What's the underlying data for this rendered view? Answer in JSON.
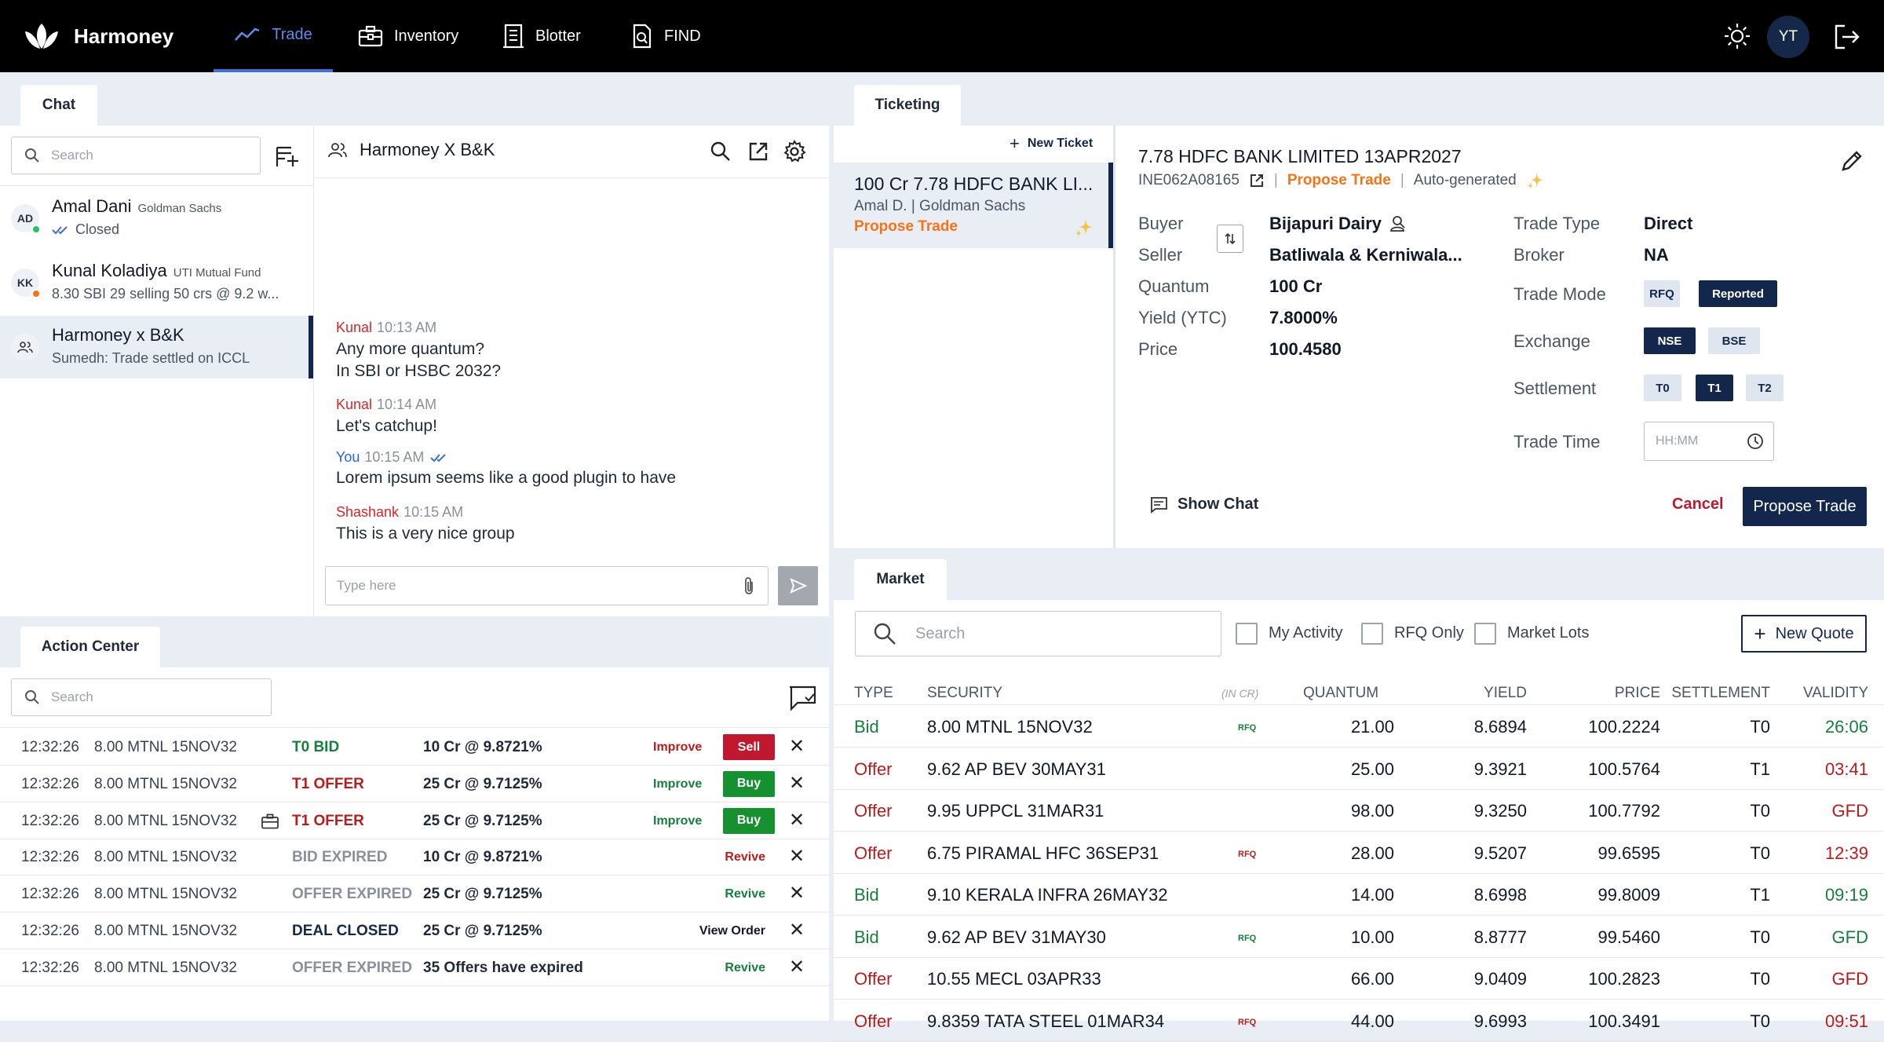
{
  "nav": {
    "brand": "Harmoney",
    "items": [
      {
        "label": "Trade",
        "icon": "trend-line-icon",
        "active": true
      },
      {
        "label": "Inventory",
        "icon": "briefcase-icon"
      },
      {
        "label": "Blotter",
        "icon": "ledger-icon"
      },
      {
        "label": "FIND",
        "icon": "find-document-icon"
      }
    ],
    "user_initials": "YT"
  },
  "chat": {
    "tab": "Chat",
    "search_placeholder": "Search",
    "list": [
      {
        "initials": "AD",
        "name": "Amal Dani",
        "org": "Goldman Sachs",
        "sub": "Closed",
        "status_color": "#22c55e"
      },
      {
        "initials": "KK",
        "name": "Kunal Koladiya",
        "org": "UTI Mutual Fund",
        "sub": "8.30 SBI 29 selling 50 crs @ 9.2 w...",
        "status_color": "#f97316"
      },
      {
        "name": "Harmoney x B&K",
        "sub": "Sumedh: Trade settled on ICCL"
      }
    ],
    "conversation_title": "Harmoney X B&K",
    "messages": [
      {
        "sender": "Kunal",
        "time": "10:13 AM",
        "lines": [
          "Any more quantum?",
          "In SBI or HSBC 2032?"
        ]
      },
      {
        "sender": "Kunal",
        "time": "10:14 AM",
        "lines": [
          "Let's catchup!"
        ]
      },
      {
        "sender": "You",
        "time": "10:15 AM",
        "lines": [
          "Lorem ipsum seems like a good plugin to have"
        ]
      },
      {
        "sender": "Shashank",
        "time": "10:15 AM",
        "lines": [
          "This is a very nice group"
        ]
      }
    ],
    "input_placeholder": "Type here"
  },
  "action_center": {
    "tab": "Action Center",
    "search_placeholder": "Search",
    "rows": [
      {
        "time": "12:32:26",
        "security": "8.00 MTNL 15NOV32",
        "status": "T0 BID",
        "status_color": "#15803d",
        "detail": "10 Cr @ 9.8721%",
        "action": "Improve",
        "action_color": "#b91c1c",
        "button": "Sell",
        "button_color": "#c0192f"
      },
      {
        "time": "12:32:26",
        "security": "8.00 MTNL 15NOV32",
        "status": "T1 OFFER",
        "status_color": "#b91c1c",
        "detail": "25 Cr @ 9.7125%",
        "action": "Improve",
        "action_color": "#15803d",
        "button": "Buy",
        "button_color": "#15912f"
      },
      {
        "time": "12:32:26",
        "security": "8.00 MTNL 15NOV32",
        "status": "T1 OFFER",
        "status_color": "#b91c1c",
        "detail": "25 Cr @ 9.7125%",
        "action": "Improve",
        "action_color": "#15803d",
        "button": "Buy",
        "button_color": "#15912f",
        "icon": true
      },
      {
        "time": "12:32:26",
        "security": "8.00 MTNL 15NOV32",
        "status": "BID EXPIRED",
        "status_color": "#8a9099",
        "detail": "10 Cr @ 9.8721%",
        "action": "Revive",
        "action_color": "#b91c1c"
      },
      {
        "time": "12:32:26",
        "security": "8.00 MTNL 15NOV32",
        "status": "OFFER EXPIRED",
        "status_color": "#8a9099",
        "detail": "25 Cr @ 9.7125%",
        "action": "Revive",
        "action_color": "#15803d"
      },
      {
        "time": "12:32:26",
        "security": "8.00 MTNL 15NOV32",
        "status": "DEAL CLOSED",
        "status_color": "#13264b",
        "detail": "25 Cr @ 9.7125%",
        "action": "View Order",
        "action_color": "#111827"
      },
      {
        "time": "12:32:26",
        "security": "8.00 MTNL 15NOV32",
        "status": "OFFER EXPIRED",
        "status_color": "#8a9099",
        "detail": "35 Offers have expired",
        "action": "Revive",
        "action_color": "#15803d"
      }
    ]
  },
  "ticketing": {
    "tab": "Ticketing",
    "new_ticket": "New Ticket",
    "list": [
      {
        "title": "100 Cr 7.78 HDFC BANK LI...",
        "sub": "Amal D. | Goldman Sachs",
        "status": "Propose Trade"
      }
    ],
    "detail": {
      "title": "7.78 HDFC BANK LIMITED 13APR2027",
      "isin": "INE062A08165",
      "status": "Propose Trade",
      "source": "Auto-generated",
      "fields": [
        {
          "label": "Buyer",
          "value": "Bijapuri Dairy"
        },
        {
          "label": "Seller",
          "value": "Batliwala & Kerniwala..."
        },
        {
          "label": "Quantum",
          "value": "100 Cr"
        },
        {
          "label": "Yield (YTC)",
          "value": "7.8000%"
        },
        {
          "label": "Price",
          "value": "100.4580"
        }
      ],
      "trade_type_label": "Trade Type",
      "trade_type": "Direct",
      "broker_label": "Broker",
      "broker": "NA",
      "trade_mode_label": "Trade Mode",
      "trade_modes": [
        "RFQ",
        "Reported"
      ],
      "trade_mode_selected": "Reported",
      "exchange_label": "Exchange",
      "exchanges": [
        "NSE",
        "BSE"
      ],
      "exchange_selected": "NSE",
      "settlement_label": "Settlement",
      "settlements": [
        "T0",
        "T1",
        "T2"
      ],
      "settlement_selected": "T1",
      "trade_time_label": "Trade Time",
      "trade_time_placeholder": "HH:MM",
      "show_chat": "Show Chat",
      "cancel": "Cancel",
      "propose": "Propose Trade"
    }
  },
  "market": {
    "tab": "Market",
    "search_placeholder": "Search",
    "filters": [
      "My Activity",
      "RFQ Only",
      "Market Lots"
    ],
    "new_quote": "New Quote",
    "columns": {
      "type": "TYPE",
      "security": "SECURITY",
      "unit": "(IN CR)",
      "quantum": "QUANTUM",
      "yield": "YIELD",
      "price": "PRICE",
      "settlement": "SETTLEMENT",
      "validity": "VALIDITY"
    },
    "rows": [
      {
        "type": "Bid",
        "security": "8.00 MTNL 15NOV32",
        "rfq": "RFQ",
        "quantum": "21.00",
        "yield": "8.6894",
        "price": "100.2224",
        "settlement": "T0",
        "validity": "26:06",
        "validity_color": "#15803d"
      },
      {
        "type": "Offer",
        "security": "9.62 AP BEV 30MAY31",
        "rfq": "",
        "quantum": "25.00",
        "yield": "9.3921",
        "price": "100.5764",
        "settlement": "T1",
        "validity": "03:41",
        "validity_color": "#b91c1c"
      },
      {
        "type": "Offer",
        "security": "9.95 UPPCL 31MAR31",
        "rfq": "",
        "quantum": "98.00",
        "yield": "9.3250",
        "price": "100.7792",
        "settlement": "T0",
        "validity": "GFD",
        "validity_color": "#b91c1c"
      },
      {
        "type": "Offer",
        "security": "6.75 PIRAMAL HFC 36SEP31",
        "rfq": "RFQ",
        "quantum": "28.00",
        "yield": "9.5207",
        "price": "99.6595",
        "settlement": "T0",
        "validity": "12:39",
        "validity_color": "#b91c1c"
      },
      {
        "type": "Bid",
        "security": "9.10 KERALA INFRA 26MAY32",
        "rfq": "",
        "quantum": "14.00",
        "yield": "8.6998",
        "price": "99.8009",
        "settlement": "T1",
        "validity": "09:19",
        "validity_color": "#15803d"
      },
      {
        "type": "Bid",
        "security": "9.62 AP BEV 31MAY30",
        "rfq": "RFQ",
        "quantum": "10.00",
        "yield": "8.8777",
        "price": "99.5460",
        "settlement": "T0",
        "validity": "GFD",
        "validity_color": "#15803d"
      },
      {
        "type": "Offer",
        "security": "10.55 MECL 03APR33",
        "rfq": "",
        "quantum": "66.00",
        "yield": "9.0409",
        "price": "100.2823",
        "settlement": "T0",
        "validity": "GFD",
        "validity_color": "#b91c1c"
      },
      {
        "type": "Offer",
        "security": "9.8359 TATA STEEL 01MAR34",
        "rfq": "RFQ",
        "quantum": "44.00",
        "yield": "9.6993",
        "price": "100.3491",
        "settlement": "T0",
        "validity": "09:51",
        "validity_color": "#b91c1c"
      }
    ]
  },
  "colors": {
    "navy": "#13264b",
    "bid": "#15803d",
    "offer": "#b91c1c",
    "propose": "#f97316",
    "accent_blue": "#3d6fd6"
  }
}
